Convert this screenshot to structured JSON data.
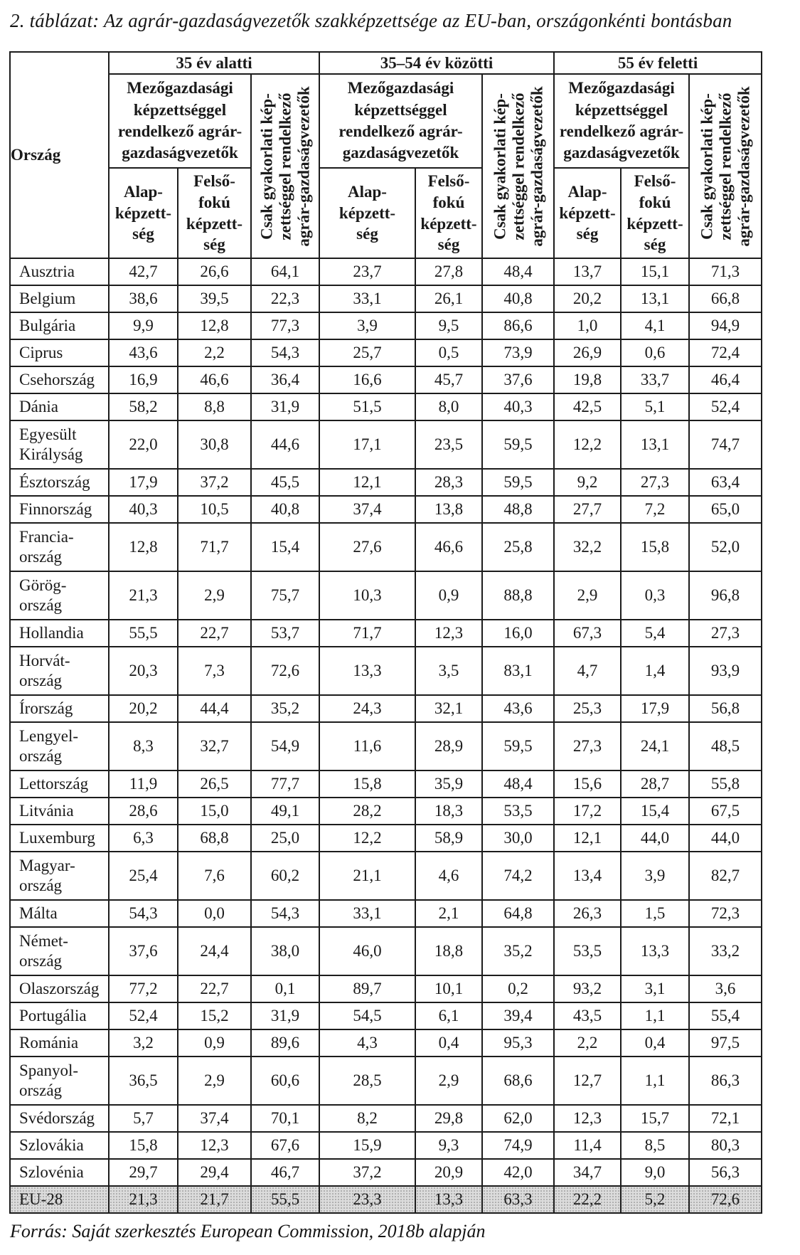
{
  "title": "2. táblázat: Az agrár-gazdaságvezetők szakképzettsége az EU-ban, országonkénti bontásban",
  "source_note": "Forrás: Saját szerkesztés European Commission, 2018b alapján",
  "table": {
    "country_column_header": "Ország",
    "age_groups": [
      "35 év alatti",
      "35–54 év közötti",
      "55 év feletti"
    ],
    "sub_headers": {
      "agri_qualified": "Mezőgazdasági\nképzettséggel\nrendelkező agrár-\ngazdaságvezetők",
      "practical_only": "Csak gyakorlati kép-\nzettséggel rendelkező\nagrár-gazdaságvezetők",
      "basic": "Alap-\nképzett-\nség",
      "higher": "Felső-\nfokú\nképzett-\nség"
    },
    "rows": [
      {
        "country": "Ausztria",
        "values": [
          "42,7",
          "26,6",
          "64,1",
          "23,7",
          "27,8",
          "48,4",
          "13,7",
          "15,1",
          "71,3"
        ]
      },
      {
        "country": "Belgium",
        "values": [
          "38,6",
          "39,5",
          "22,3",
          "33,1",
          "26,1",
          "40,8",
          "20,2",
          "13,1",
          "66,8"
        ]
      },
      {
        "country": "Bulgária",
        "values": [
          "9,9",
          "12,8",
          "77,3",
          "3,9",
          "9,5",
          "86,6",
          "1,0",
          "4,1",
          "94,9"
        ]
      },
      {
        "country": "Ciprus",
        "values": [
          "43,6",
          "2,2",
          "54,3",
          "25,7",
          "0,5",
          "73,9",
          "26,9",
          "0,6",
          "72,4"
        ]
      },
      {
        "country": "Csehország",
        "values": [
          "16,9",
          "46,6",
          "36,4",
          "16,6",
          "45,7",
          "37,6",
          "19,8",
          "33,7",
          "46,4"
        ]
      },
      {
        "country": "Dánia",
        "values": [
          "58,2",
          "8,8",
          "31,9",
          "51,5",
          "8,0",
          "40,3",
          "42,5",
          "5,1",
          "52,4"
        ]
      },
      {
        "country": "Egyesült\nKirályság",
        "values": [
          "22,0",
          "30,8",
          "44,6",
          "17,1",
          "23,5",
          "59,5",
          "12,2",
          "13,1",
          "74,7"
        ]
      },
      {
        "country": "Észtország",
        "values": [
          "17,9",
          "37,2",
          "45,5",
          "12,1",
          "28,3",
          "59,5",
          "9,2",
          "27,3",
          "63,4"
        ]
      },
      {
        "country": "Finnország",
        "values": [
          "40,3",
          "10,5",
          "40,8",
          "37,4",
          "13,8",
          "48,8",
          "27,7",
          "7,2",
          "65,0"
        ]
      },
      {
        "country": "Francia-\nország",
        "values": [
          "12,8",
          "71,7",
          "15,4",
          "27,6",
          "46,6",
          "25,8",
          "32,2",
          "15,8",
          "52,0"
        ]
      },
      {
        "country": "Görög-\nország",
        "values": [
          "21,3",
          "2,9",
          "75,7",
          "10,3",
          "0,9",
          "88,8",
          "2,9",
          "0,3",
          "96,8"
        ]
      },
      {
        "country": "Hollandia",
        "values": [
          "55,5",
          "22,7",
          "53,7",
          "71,7",
          "12,3",
          "16,0",
          "67,3",
          "5,4",
          "27,3"
        ]
      },
      {
        "country": "Horvát-\nország",
        "values": [
          "20,3",
          "7,3",
          "72,6",
          "13,3",
          "3,5",
          "83,1",
          "4,7",
          "1,4",
          "93,9"
        ]
      },
      {
        "country": "Írország",
        "values": [
          "20,2",
          "44,4",
          "35,2",
          "24,3",
          "32,1",
          "43,6",
          "25,3",
          "17,9",
          "56,8"
        ]
      },
      {
        "country": "Lengyel-\nország",
        "values": [
          "8,3",
          "32,7",
          "54,9",
          "11,6",
          "28,9",
          "59,5",
          "27,3",
          "24,1",
          "48,5"
        ]
      },
      {
        "country": "Lettország",
        "values": [
          "11,9",
          "26,5",
          "77,7",
          "15,8",
          "35,9",
          "48,4",
          "15,6",
          "28,7",
          "55,8"
        ]
      },
      {
        "country": "Litvánia",
        "values": [
          "28,6",
          "15,0",
          "49,1",
          "28,2",
          "18,3",
          "53,5",
          "17,2",
          "15,4",
          "67,5"
        ]
      },
      {
        "country": "Luxemburg",
        "values": [
          "6,3",
          "68,8",
          "25,0",
          "12,2",
          "58,9",
          "30,0",
          "12,1",
          "44,0",
          "44,0"
        ]
      },
      {
        "country": "Magyar-\nország",
        "values": [
          "25,4",
          "7,6",
          "60,2",
          "21,1",
          "4,6",
          "74,2",
          "13,4",
          "3,9",
          "82,7"
        ]
      },
      {
        "country": "Málta",
        "values": [
          "54,3",
          "0,0",
          "54,3",
          "33,1",
          "2,1",
          "64,8",
          "26,3",
          "1,5",
          "72,3"
        ]
      },
      {
        "country": "Német-\nország",
        "values": [
          "37,6",
          "24,4",
          "38,0",
          "46,0",
          "18,8",
          "35,2",
          "53,5",
          "13,3",
          "33,2"
        ]
      },
      {
        "country": "Olaszország",
        "values": [
          "77,2",
          "22,7",
          "0,1",
          "89,7",
          "10,1",
          "0,2",
          "93,2",
          "3,1",
          "3,6"
        ]
      },
      {
        "country": "Portugália",
        "values": [
          "52,4",
          "15,2",
          "31,9",
          "54,5",
          "6,1",
          "39,4",
          "43,5",
          "1,1",
          "55,4"
        ]
      },
      {
        "country": "Románia",
        "values": [
          "3,2",
          "0,9",
          "89,6",
          "4,3",
          "0,4",
          "95,3",
          "2,2",
          "0,4",
          "97,5"
        ]
      },
      {
        "country": "Spanyol-\nország",
        "values": [
          "36,5",
          "2,9",
          "60,6",
          "28,5",
          "2,9",
          "68,6",
          "12,7",
          "1,1",
          "86,3"
        ]
      },
      {
        "country": "Svédország",
        "values": [
          "5,7",
          "37,4",
          "70,1",
          "8,2",
          "29,8",
          "62,0",
          "12,3",
          "15,7",
          "72,1"
        ]
      },
      {
        "country": "Szlovákia",
        "values": [
          "15,8",
          "12,3",
          "67,6",
          "15,9",
          "9,3",
          "74,9",
          "11,4",
          "8,5",
          "80,3"
        ]
      },
      {
        "country": "Szlovénia",
        "values": [
          "29,7",
          "29,4",
          "46,7",
          "37,2",
          "20,9",
          "42,0",
          "34,7",
          "9,0",
          "56,3"
        ]
      },
      {
        "country": "EU-28",
        "highlight": true,
        "values": [
          "21,3",
          "21,7",
          "55,5",
          "23,3",
          "13,3",
          "63,3",
          "22,2",
          "5,2",
          "72,6"
        ]
      }
    ]
  }
}
